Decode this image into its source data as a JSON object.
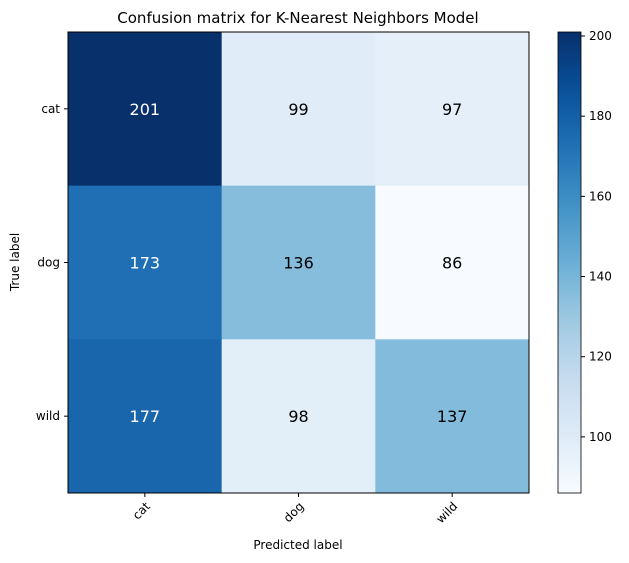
{
  "chart_data": {
    "type": "heatmap",
    "title": "Confusion matrix for K-Nearest Neighbors Model",
    "xlabel": "Predicted label",
    "ylabel": "True label",
    "x_categories": [
      "cat",
      "dog",
      "wild"
    ],
    "y_categories": [
      "cat",
      "dog",
      "wild"
    ],
    "values": [
      [
        201,
        99,
        97
      ],
      [
        173,
        136,
        86
      ],
      [
        177,
        98,
        137
      ]
    ],
    "colormap": "Blues",
    "colorbar": {
      "range": [
        86,
        201
      ],
      "ticks": [
        "100",
        "120",
        "140",
        "160",
        "180",
        "200"
      ]
    }
  }
}
